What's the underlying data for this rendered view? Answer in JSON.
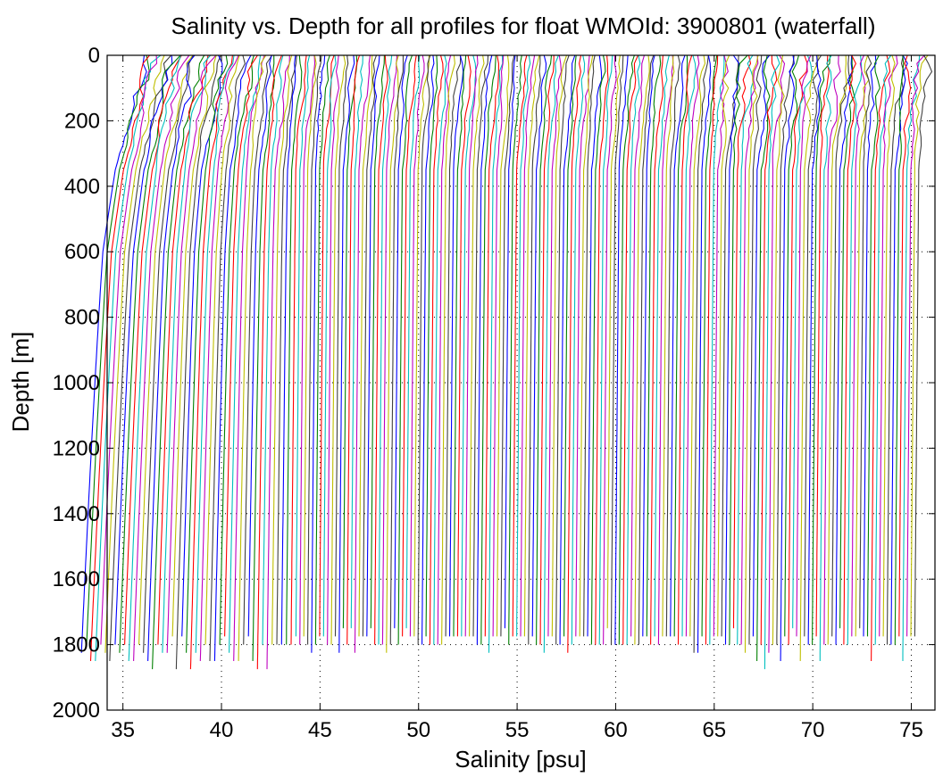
{
  "chart_data": {
    "type": "line",
    "title": "Salinity vs. Depth for all profiles for float WMOId: 3900801 (waterfall)",
    "xlabel": "Salinity [psu]",
    "ylabel": "Depth [m]",
    "xlim": [
      34.2,
      76.2
    ],
    "ylim": [
      0,
      2000
    ],
    "y_reversed": true,
    "grid": true,
    "x_ticks": [
      35,
      40,
      45,
      50,
      55,
      60,
      65,
      70,
      75
    ],
    "y_ticks": [
      0,
      200,
      400,
      600,
      800,
      1000,
      1200,
      1400,
      1600,
      1800,
      2000
    ],
    "series_count": 203,
    "waterfall_offset_psu": 0.2,
    "first_profile_surface_salinity": 34.6,
    "last_profile_surface_salinity": 75.4,
    "deep_salinity_approx": 34.9,
    "max_profile_depth": 1880,
    "line_colors": [
      "#0000ff",
      "#008000",
      "#ff0000",
      "#00bfbf",
      "#bf00bf",
      "#bfbf00",
      "#404040"
    ]
  }
}
